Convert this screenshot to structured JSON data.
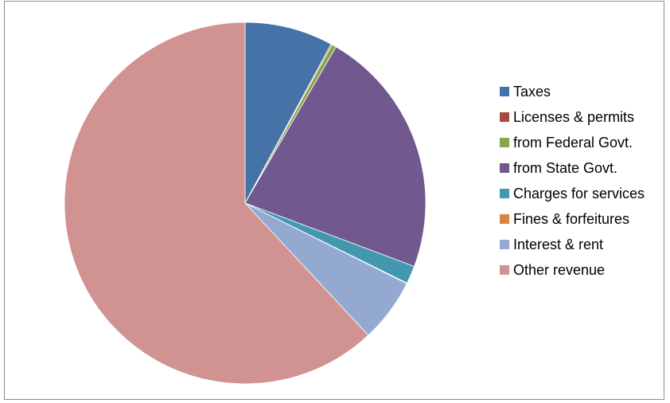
{
  "chart_data": {
    "type": "pie",
    "title": "",
    "legend_position": "right",
    "slices": [
      {
        "label": "Taxes",
        "value": 7.9,
        "color": "#4572A7"
      },
      {
        "label": "Licenses & permits",
        "value": 0.1,
        "color": "#AA4643"
      },
      {
        "label": "from Federal Govt.",
        "value": 0.4,
        "color": "#89A54E"
      },
      {
        "label": "from State Govt.",
        "value": 22.3,
        "color": "#71588F"
      },
      {
        "label": "Charges for services",
        "value": 1.6,
        "color": "#4198AF"
      },
      {
        "label": "Fines & forfeitures",
        "value": 0.05,
        "color": "#DB843D"
      },
      {
        "label": "Interest & rent",
        "value": 5.7,
        "color": "#93A9CF"
      },
      {
        "label": "Other revenue",
        "value": 61.95,
        "color": "#D19392"
      }
    ]
  }
}
